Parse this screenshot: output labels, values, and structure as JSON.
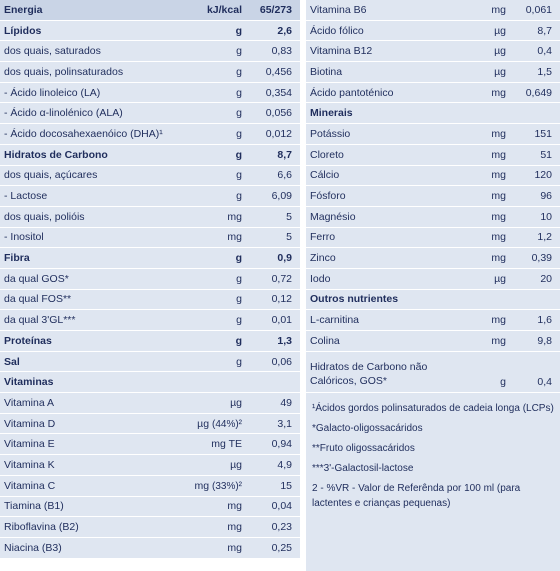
{
  "left": [
    {
      "name": "Energia",
      "unit": "kJ/kcal",
      "value": "65/273",
      "style": "header"
    },
    {
      "name": "Lípidos",
      "unit": "g",
      "value": "2,6",
      "style": "bold"
    },
    {
      "name": "dos quais, saturados",
      "unit": "g",
      "value": "0,83"
    },
    {
      "name": "dos quais, polinsaturados",
      "unit": "g",
      "value": "0,456"
    },
    {
      "name": "- Ácido linoleico (LA)",
      "unit": "g",
      "value": "0,354"
    },
    {
      "name": "- Ácido α-linolénico (ALA)",
      "unit": "g",
      "value": "0,056"
    },
    {
      "name": "- Ácido docosahexaenóico (DHA)¹",
      "unit": "g",
      "value": "0,012"
    },
    {
      "name": "Hidratos de Carbono",
      "unit": "g",
      "value": "8,7",
      "style": "bold"
    },
    {
      "name": "dos quais, açúcares",
      "unit": "g",
      "value": "6,6"
    },
    {
      "name": "- Lactose",
      "unit": "g",
      "value": "6,09"
    },
    {
      "name": "dos quais, polióis",
      "unit": "mg",
      "value": "5"
    },
    {
      "name": "- Inositol",
      "unit": "mg",
      "value": "5"
    },
    {
      "name": "Fibra",
      "unit": "g",
      "value": "0,9",
      "style": "bold"
    },
    {
      "name": "da qual GOS*",
      "unit": "g",
      "value": "0,72"
    },
    {
      "name": "da qual FOS**",
      "unit": "g",
      "value": "0,12"
    },
    {
      "name": "da qual 3'GL***",
      "unit": "g",
      "value": "0,01"
    },
    {
      "name": "Proteínas",
      "unit": "g",
      "value": "1,3",
      "style": "bold"
    },
    {
      "name": "Sal",
      "unit": "g",
      "value": "0,06",
      "style": "label-bold"
    },
    {
      "name": "Vitaminas",
      "style": "section"
    },
    {
      "name": "Vitamina A",
      "unit": "µg",
      "value": "49"
    },
    {
      "name": "Vitamina D",
      "unit": "µg",
      "vr": "(44%)²",
      "value": "3,1"
    },
    {
      "name": "Vitamina E",
      "unit": "mg TE",
      "value": "0,94"
    },
    {
      "name": "Vitamina K",
      "unit": "µg",
      "value": "4,9"
    },
    {
      "name": "Vitamina C",
      "unit": "mg",
      "vr": "(33%)²",
      "value": "15"
    },
    {
      "name": "Tiamina (B1)",
      "unit": "mg",
      "value": "0,04"
    },
    {
      "name": "Riboflavina (B2)",
      "unit": "mg",
      "value": "0,23"
    },
    {
      "name": "Niacina (B3)",
      "unit": "mg",
      "value": "0,25"
    }
  ],
  "right": [
    {
      "name": "Vitamina B6",
      "unit": "mg",
      "value": "0,061"
    },
    {
      "name": "Ácido fólico",
      "unit": "µg",
      "value": "8,7"
    },
    {
      "name": "Vitamina B12",
      "unit": "µg",
      "value": "0,4"
    },
    {
      "name": "Biotina",
      "unit": "µg",
      "value": "1,5"
    },
    {
      "name": "Ácido pantoténico",
      "unit": "mg",
      "value": "0,649"
    },
    {
      "name": "Minerais",
      "style": "section"
    },
    {
      "name": "Potássio",
      "unit": "mg",
      "value": "151"
    },
    {
      "name": "Cloreto",
      "unit": "mg",
      "value": "51"
    },
    {
      "name": "Cálcio",
      "unit": "mg",
      "value": "120"
    },
    {
      "name": "Fósforo",
      "unit": "mg",
      "value": "96"
    },
    {
      "name": "Magnésio",
      "unit": "mg",
      "value": "10"
    },
    {
      "name": "Ferro",
      "unit": "mg",
      "value": "1,2"
    },
    {
      "name": "Zinco",
      "unit": "mg",
      "value": "0,39"
    },
    {
      "name": "Iodo",
      "unit": "µg",
      "value": "20"
    },
    {
      "name": "Outros nutrientes",
      "style": "section"
    },
    {
      "name": "L-carnitina",
      "unit": "mg",
      "value": "1,6"
    },
    {
      "name": "Colina",
      "unit": "mg",
      "value": "9,8"
    },
    {
      "name": "Hidratos de Carbono não Calóricos, GOS*",
      "unit": "g",
      "value": "0,4",
      "style": "tall"
    }
  ],
  "footnotes": [
    "¹Ácidos gordos polinsaturados de cadeia longa (LCPs)",
    "*Galacto-oligossacáridos",
    "**Fruto oligossacáridos",
    "***3'-Galactosil-lactose",
    "2 - %VR - Valor de Referênda por 100 ml (para lactentes e crianças pequenas)"
  ]
}
